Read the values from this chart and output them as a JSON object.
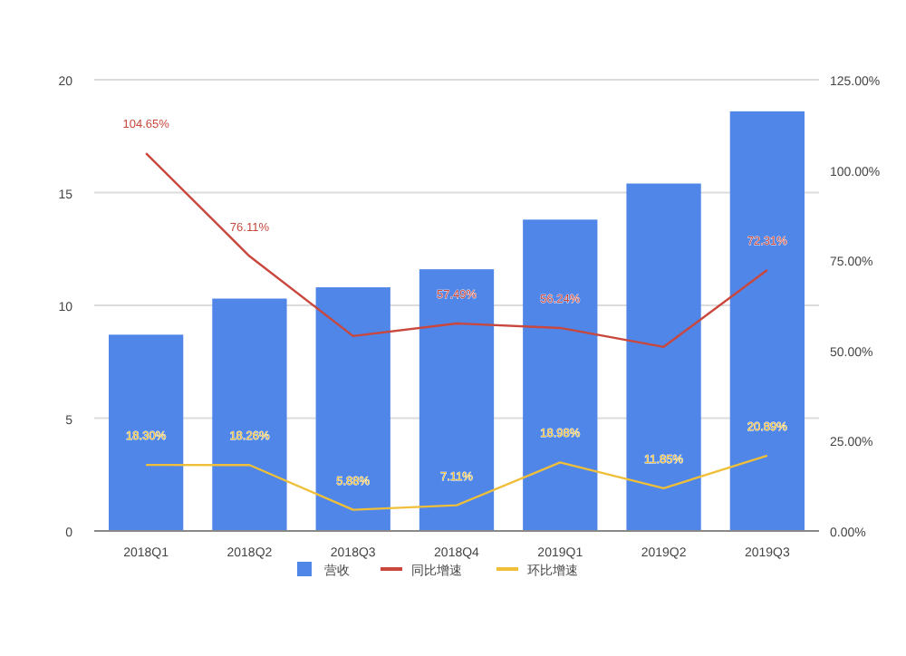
{
  "chart_data": {
    "type": "bar",
    "categories": [
      "2018Q1",
      "2018Q2",
      "2018Q3",
      "2018Q4",
      "2019Q1",
      "2019Q2",
      "2019Q3"
    ],
    "series": [
      {
        "name": "营收",
        "color": "#4f86e8",
        "values": [
          8.7,
          10.3,
          10.8,
          11.6,
          13.8,
          15.4,
          18.6
        ]
      },
      {
        "name": "同比增速",
        "type": "line",
        "axis": "y2",
        "color": "#c9473d",
        "values": [
          104.65,
          76.11,
          54,
          57.49,
          56.24,
          51,
          72.31
        ],
        "value_labels": [
          "104.65%",
          "76.11%",
          null,
          "57.49%",
          "56.24%",
          null,
          "72.31%"
        ]
      },
      {
        "name": "环比增速",
        "type": "line",
        "axis": "y2",
        "color": "#efbf3a",
        "values": [
          18.3,
          18.26,
          5.88,
          7.11,
          18.98,
          11.85,
          20.89
        ],
        "value_labels": [
          "18.30%",
          "18.26%",
          "5.88%",
          "7.11%",
          "18.98%",
          "11.85%",
          "20.89%"
        ]
      }
    ],
    "ylim": [
      0,
      20
    ],
    "yticks": [
      0,
      5,
      10,
      15,
      20
    ],
    "y2lim": [
      0,
      125
    ],
    "y2ticks": [
      {
        "value": 0,
        "label": "0.00%"
      },
      {
        "value": 25,
        "label": "25.00%"
      },
      {
        "value": 50,
        "label": "50.00%"
      },
      {
        "value": 75,
        "label": "75.00%"
      },
      {
        "value": 100,
        "label": "100.00%"
      },
      {
        "value": 125,
        "label": "125.00%"
      }
    ],
    "grid": "y",
    "legend": "bottom"
  }
}
